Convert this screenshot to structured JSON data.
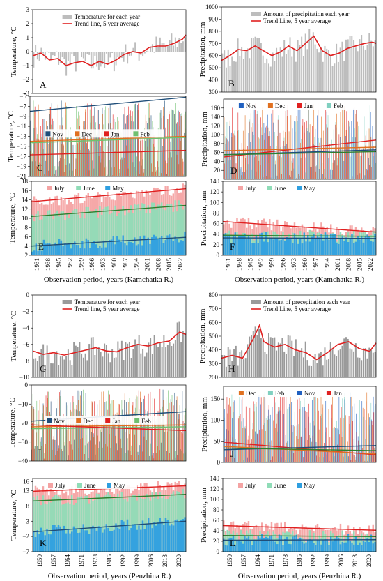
{
  "chart_data": [
    {
      "id": "A",
      "type": "bar",
      "panel_label": "A",
      "ylabel": "Temperature, °C",
      "ylim": [
        -3,
        3
      ],
      "yticks": [
        -3,
        -2,
        -1,
        0,
        1,
        2,
        3
      ],
      "xlim": [
        1931,
        2023
      ],
      "bar_color": "#bdbdbd",
      "trend_color": "#e02020",
      "legend": [
        "Temperature for each year",
        "Trend line, 5 year average"
      ],
      "trend": {
        "x": [
          1931,
          1936,
          1941,
          1946,
          1951,
          1956,
          1961,
          1966,
          1971,
          1976,
          1981,
          1986,
          1991,
          1996,
          2001,
          2006,
          2011,
          2016,
          2021,
          2023
        ],
        "y": [
          -0.3,
          -0.1,
          -0.6,
          -0.5,
          -1.0,
          -0.8,
          -0.7,
          -1.0,
          -0.7,
          -0.9,
          -0.6,
          -0.2,
          0.0,
          -0.1,
          0.3,
          0.4,
          0.4,
          0.6,
          0.9,
          1.2
        ]
      }
    },
    {
      "id": "B",
      "type": "bar",
      "panel_label": "B",
      "ylabel": "Precipitation, mm",
      "ylim": [
        300,
        1000
      ],
      "yticks": [
        300,
        400,
        500,
        600,
        700,
        800,
        900,
        1000
      ],
      "xlim": [
        1931,
        2023
      ],
      "bar_color": "#bdbdbd",
      "trend_color": "#e02020",
      "legend": [
        "Amount of precipitation each year",
        "Trend Line, 5 year average"
      ],
      "trend": {
        "x": [
          1931,
          1936,
          1941,
          1946,
          1951,
          1956,
          1961,
          1966,
          1971,
          1976,
          1981,
          1986,
          1991,
          1996,
          2001,
          2006,
          2011,
          2016,
          2021,
          2023
        ],
        "y": [
          560,
          600,
          650,
          640,
          680,
          640,
          600,
          630,
          680,
          640,
          700,
          760,
          640,
          600,
          620,
          660,
          680,
          700,
          710,
          700
        ]
      }
    },
    {
      "id": "C",
      "type": "bar",
      "panel_label": "C",
      "ylabel": "Temperature, °C",
      "ylim": [
        -21,
        -5
      ],
      "yticks": [
        -5,
        -7,
        -9,
        -11,
        -13,
        -15,
        -17,
        -19,
        -21
      ],
      "xlim": [
        1931,
        2023
      ],
      "legend": [
        {
          "name": "Nov",
          "color": "#1f4e79"
        },
        {
          "name": "Dec",
          "color": "#e07020"
        },
        {
          "name": "Jan",
          "color": "#e02020"
        },
        {
          "name": "Feb",
          "color": "#70c070"
        }
      ],
      "trends": [
        {
          "name": "Nov",
          "color": "#1f4e79",
          "y": [
            -8.0,
            -5.2
          ]
        },
        {
          "name": "Dec",
          "color": "#e07020",
          "y": [
            -14.0,
            -13.0
          ]
        },
        {
          "name": "Feb",
          "color": "#70c070",
          "y": [
            -14.3,
            -13.2
          ]
        },
        {
          "name": "Jan",
          "color": "#e02020",
          "y": [
            -16.7,
            -15.8
          ]
        }
      ]
    },
    {
      "id": "D",
      "type": "bar",
      "panel_label": "D",
      "ylabel": "Precipitation, mm",
      "ylim": [
        0,
        180
      ],
      "yticks": [
        20,
        40,
        60,
        80,
        100,
        120,
        140,
        160
      ],
      "xlim": [
        1931,
        2023
      ],
      "legend": [
        {
          "name": "Nov",
          "color": "#2060c0"
        },
        {
          "name": "Dec",
          "color": "#e07020"
        },
        {
          "name": "Jan",
          "color": "#e02020"
        },
        {
          "name": "Feb",
          "color": "#80d0c0"
        }
      ],
      "trends": [
        {
          "name": "Jan",
          "color": "#e02020",
          "y": [
            50,
            88
          ]
        },
        {
          "name": "Dec",
          "color": "#e07020",
          "y": [
            64,
            72
          ]
        },
        {
          "name": "Nov",
          "color": "#1f4e79",
          "y": [
            55,
            66
          ]
        },
        {
          "name": "Feb",
          "color": "#2f7f2f",
          "y": [
            55,
            62
          ]
        }
      ]
    },
    {
      "id": "E",
      "type": "bar",
      "panel_label": "E",
      "ylabel": "Temperature, °C",
      "ylim": [
        2,
        18
      ],
      "yticks": [
        2,
        4,
        6,
        8,
        10,
        12,
        14,
        16,
        18
      ],
      "categories": [
        "1931",
        "1938",
        "1945",
        "1952",
        "1959",
        "1966",
        "1973",
        "1980",
        "1987",
        "1994",
        "2001",
        "2008",
        "2015",
        "2022"
      ],
      "xlabel": "Observation period, years (Kamchatka R.)",
      "legend": [
        {
          "name": "July",
          "color": "#f4a3a3"
        },
        {
          "name": "June",
          "color": "#8fdcb7"
        },
        {
          "name": "May",
          "color": "#2e9fe0"
        }
      ],
      "trends": [
        {
          "name": "July",
          "color": "#e02020",
          "y": [
            13.6,
            16.4
          ]
        },
        {
          "name": "June",
          "color": "#2f7f2f",
          "y": [
            10.4,
            12.8
          ]
        },
        {
          "name": "May",
          "color": "#1f4e79",
          "y": [
            4.0,
            5.9
          ]
        }
      ]
    },
    {
      "id": "F",
      "type": "bar",
      "panel_label": "F",
      "ylabel": "Precipitation, mm",
      "ylim": [
        0,
        140
      ],
      "yticks": [
        0,
        20,
        40,
        60,
        80,
        100,
        120,
        140
      ],
      "categories": [
        "1931",
        "1938",
        "1945",
        "1952",
        "1959",
        "1966",
        "1973",
        "1980",
        "1987",
        "1994",
        "2001",
        "2008",
        "2015",
        "2022"
      ],
      "xlabel": "Observation period, years (Kamchatka R.)",
      "legend": [
        {
          "name": "July",
          "color": "#f4a3a3"
        },
        {
          "name": "June",
          "color": "#8fdcb7"
        },
        {
          "name": "May",
          "color": "#2e9fe0"
        }
      ],
      "trends": [
        {
          "name": "July",
          "color": "#e02020",
          "y": [
            64,
            44
          ]
        },
        {
          "name": "June",
          "color": "#2f7f2f",
          "y": [
            38,
            36
          ]
        },
        {
          "name": "May",
          "color": "#1f4e79",
          "y": [
            33,
            32
          ]
        }
      ]
    },
    {
      "id": "G",
      "type": "bar",
      "panel_label": "G",
      "ylabel": "Temperature, °C",
      "ylim": [
        -10,
        0
      ],
      "yticks": [
        0,
        -2,
        -4,
        -6,
        -8,
        -10
      ],
      "xlim": [
        1950,
        2023
      ],
      "bar_color": "#9a9a9a",
      "trend_color": "#e02020",
      "legend": [
        "Temperature for each year",
        "Trend line, 5 year average"
      ],
      "trend": {
        "x": [
          1950,
          1955,
          1960,
          1965,
          1970,
          1975,
          1980,
          1985,
          1990,
          1995,
          2000,
          2005,
          2010,
          2015,
          2020,
          2023
        ],
        "y": [
          -6.8,
          -7.2,
          -7.0,
          -7.3,
          -7.0,
          -6.7,
          -6.4,
          -6.8,
          -6.9,
          -6.4,
          -6.0,
          -6.2,
          -5.8,
          -5.6,
          -4.5,
          -4.8
        ]
      }
    },
    {
      "id": "H",
      "type": "bar",
      "panel_label": "H",
      "ylabel": "Precipitation, mm",
      "ylim": [
        200,
        800
      ],
      "yticks": [
        200,
        300,
        400,
        500,
        600,
        700,
        800
      ],
      "xlim": [
        1950,
        2023
      ],
      "bar_color": "#9a9a9a",
      "trend_color": "#e02020",
      "legend": [
        "Amount of precepitation each year",
        "Trend Line, 5 year average"
      ],
      "trend": {
        "x": [
          1950,
          1955,
          1960,
          1965,
          1968,
          1970,
          1975,
          1980,
          1985,
          1990,
          1995,
          2000,
          2005,
          2010,
          2015,
          2020,
          2023
        ],
        "y": [
          340,
          360,
          340,
          480,
          580,
          460,
          420,
          440,
          400,
          380,
          330,
          380,
          440,
          460,
          410,
          390,
          450
        ]
      }
    },
    {
      "id": "I",
      "type": "bar",
      "panel_label": "I",
      "ylabel": "Temperature, °C",
      "ylim": [
        -40,
        0
      ],
      "yticks": [
        0,
        -10,
        -20,
        -30,
        -40
      ],
      "xlim": [
        1950,
        2023
      ],
      "legend": [
        {
          "name": "Nov",
          "color": "#1f4e79"
        },
        {
          "name": "Dec",
          "color": "#e07020"
        },
        {
          "name": "Jan",
          "color": "#e02020"
        },
        {
          "name": "Feb",
          "color": "#70c070"
        }
      ],
      "trends": [
        {
          "name": "Nov",
          "color": "#1f4e79",
          "y": [
            -19,
            -14
          ]
        },
        {
          "name": "Dec",
          "color": "#e07020",
          "y": [
            -22,
            -21
          ]
        },
        {
          "name": "Feb",
          "color": "#70c070",
          "y": [
            -23,
            -22
          ]
        },
        {
          "name": "Jan",
          "color": "#e02020",
          "y": [
            -21,
            -24
          ]
        }
      ]
    },
    {
      "id": "J",
      "type": "bar",
      "panel_label": "J",
      "ylabel": "Precipitation, mm",
      "ylim": [
        0,
        180
      ],
      "yticks": [
        0,
        50,
        100,
        150
      ],
      "xlim": [
        1950,
        2023
      ],
      "legend": [
        {
          "name": "Dec",
          "color": "#e07020"
        },
        {
          "name": "Feb",
          "color": "#80d0c0"
        },
        {
          "name": "Nov",
          "color": "#2060c0"
        },
        {
          "name": "Jan",
          "color": "#e02020"
        }
      ],
      "trends": [
        {
          "name": "Jan",
          "color": "#e02020",
          "y": [
            48,
            18
          ]
        },
        {
          "name": "Dec",
          "color": "#e07020",
          "y": [
            38,
            20
          ]
        },
        {
          "name": "Nov",
          "color": "#1f4e79",
          "y": [
            30,
            40
          ]
        },
        {
          "name": "Feb",
          "color": "#2f7f2f",
          "y": [
            34,
            28
          ]
        }
      ]
    },
    {
      "id": "K",
      "type": "bar",
      "panel_label": "K",
      "ylabel": "Temperature, °C",
      "ylim": [
        -7,
        17
      ],
      "yticks": [
        -7,
        -2,
        3,
        8,
        13
      ],
      "extra_yticks": [
        16
      ],
      "categories": [
        "1950",
        "1957",
        "1964",
        "1971",
        "1978",
        "1985",
        "1992",
        "1999",
        "2006",
        "2013",
        "2020"
      ],
      "xlabel": "Observation period, years (Penzhina R.)",
      "legend": [
        {
          "name": "July",
          "color": "#f4a3a3"
        },
        {
          "name": "June",
          "color": "#8fdcb7"
        },
        {
          "name": "May",
          "color": "#2e9fe0"
        }
      ],
      "trends": [
        {
          "name": "July",
          "color": "#e02020",
          "y": [
            12.8,
            14.6
          ]
        },
        {
          "name": "June",
          "color": "#2f7f2f",
          "y": [
            9.6,
            11.8
          ]
        },
        {
          "name": "May",
          "color": "#1f4e79",
          "y": [
            -0.5,
            3.0
          ]
        }
      ]
    },
    {
      "id": "L",
      "type": "bar",
      "panel_label": "L",
      "ylabel": "Precipitation, mm",
      "ylim": [
        0,
        140
      ],
      "yticks": [
        0,
        20,
        40,
        60,
        80,
        100,
        120,
        140
      ],
      "categories": [
        "1950",
        "1957",
        "1964",
        "1971",
        "1978",
        "1985",
        "1992",
        "1999",
        "2006",
        "2013",
        "2020"
      ],
      "xlabel": "Observation period, years (Penzhina R.)",
      "legend": [
        {
          "name": "July",
          "color": "#f4a3a3"
        },
        {
          "name": "June",
          "color": "#8fdcb7"
        },
        {
          "name": "May",
          "color": "#2e9fe0"
        }
      ],
      "trends": [
        {
          "name": "July",
          "color": "#e02020",
          "y": [
            50,
            41
          ]
        },
        {
          "name": "June",
          "color": "#2f7f2f",
          "y": [
            31,
            29
          ]
        },
        {
          "name": "May",
          "color": "#1f4e79",
          "y": [
            22,
            23
          ]
        }
      ]
    }
  ]
}
